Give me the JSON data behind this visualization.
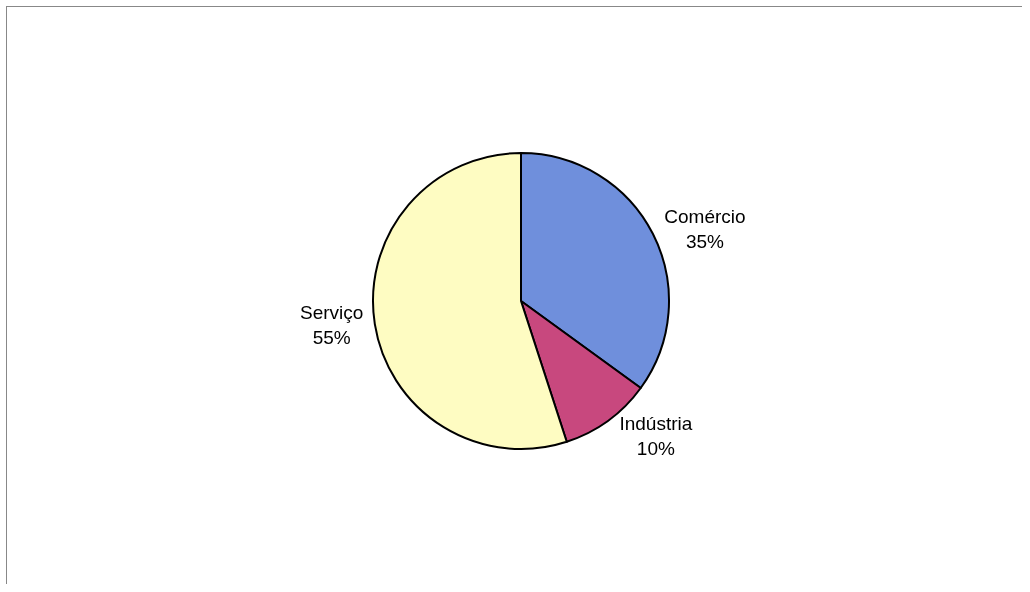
{
  "chart_data": {
    "type": "pie",
    "categories": [
      "Comércio",
      "Indústria",
      "Serviço"
    ],
    "values": [
      35,
      10,
      55
    ],
    "colors": [
      "#6f8fdc",
      "#c8487e",
      "#fefcc2"
    ],
    "value_labels": [
      "35%",
      "10%",
      "55%"
    ],
    "legend": false
  }
}
